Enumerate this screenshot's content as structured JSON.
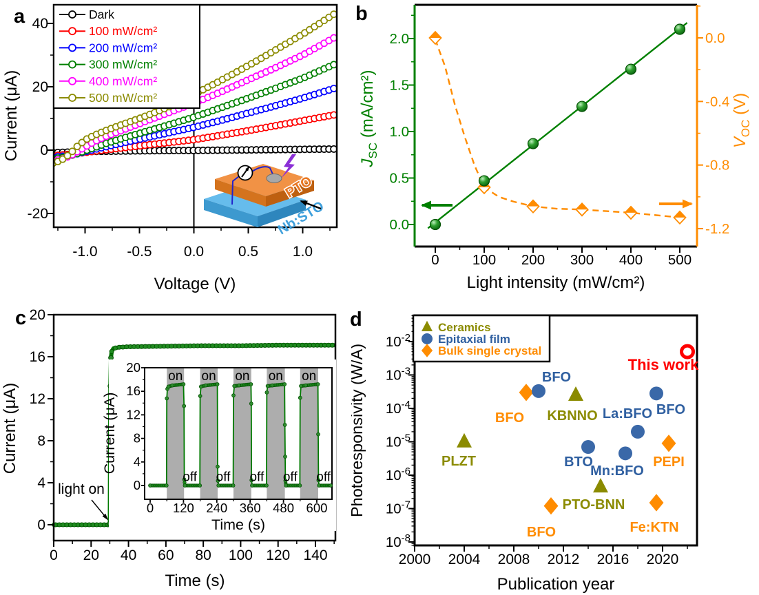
{
  "chart_data": [
    {
      "id": "a",
      "type": "line",
      "panel_label": "a",
      "xlabel": "Voltage (V)",
      "ylabel": "Current (μA)",
      "xlim": [
        -1.3,
        1.3
      ],
      "ylim": [
        -24.3,
        45.9
      ],
      "xticks": [
        -1.0,
        -0.5,
        0.0,
        0.5,
        1.0
      ],
      "xtick_labels": [
        "-1.0",
        "-0.5",
        "0.0",
        "0.5",
        "1.0"
      ],
      "yticks": [
        -20,
        0,
        20,
        40
      ],
      "ytick_labels": [
        "-20",
        "0",
        "20",
        "40"
      ],
      "x_minor_step": 0.25,
      "y_minor_step": 10,
      "legend_position": "top-left",
      "series": [
        {
          "name": "Dark",
          "color": "#000000",
          "points": [
            [
              -1.3,
              -0.8
            ],
            [
              -1.0,
              -0.45
            ],
            [
              -0.6,
              -0.25
            ],
            [
              -0.3,
              -0.15
            ],
            [
              0,
              -0.1
            ],
            [
              0.3,
              0
            ],
            [
              0.6,
              0.1
            ],
            [
              1.0,
              0.25
            ],
            [
              1.3,
              0.35
            ]
          ]
        },
        {
          "name": "100 mW/cm²",
          "color": "#FF0000",
          "points": [
            [
              -1.3,
              -1.8
            ],
            [
              -1.15,
              -1.35
            ],
            [
              -1.05,
              -0.95
            ],
            [
              -0.95,
              -0.5
            ],
            [
              -0.85,
              -0.05
            ],
            [
              -0.7,
              0.55
            ],
            [
              -0.55,
              1.15
            ],
            [
              -0.4,
              1.75
            ],
            [
              -0.2,
              2.5
            ],
            [
              0,
              3.3
            ],
            [
              0.25,
              4.7
            ],
            [
              0.5,
              6.15
            ],
            [
              0.75,
              7.7
            ],
            [
              1.0,
              9.3
            ],
            [
              1.3,
              11.2
            ]
          ]
        },
        {
          "name": "200 mW/cm²",
          "color": "#0000FF",
          "points": [
            [
              -1.3,
              -2.3
            ],
            [
              -1.18,
              -1.85
            ],
            [
              -1.08,
              -1.2
            ],
            [
              -0.98,
              -0.3
            ],
            [
              -0.9,
              0.35
            ],
            [
              -0.8,
              1.15
            ],
            [
              -0.6,
              2.7
            ],
            [
              -0.4,
              4.2
            ],
            [
              -0.2,
              5.7
            ],
            [
              0,
              7.2
            ],
            [
              0.25,
              9.4
            ],
            [
              0.5,
              11.7
            ],
            [
              0.75,
              14.0
            ],
            [
              1.0,
              16.4
            ],
            [
              1.3,
              19.6
            ]
          ]
        },
        {
          "name": "300 mW/cm²",
          "color": "#008000",
          "points": [
            [
              -1.3,
              -2.8
            ],
            [
              -1.2,
              -2.3
            ],
            [
              -1.1,
              -1.4
            ],
            [
              -1.0,
              -0.2
            ],
            [
              -0.9,
              1.0
            ],
            [
              -0.8,
              2.2
            ],
            [
              -0.6,
              4.3
            ],
            [
              -0.4,
              6.3
            ],
            [
              -0.2,
              8.3
            ],
            [
              0,
              10.4
            ],
            [
              0.25,
              13.4
            ],
            [
              0.5,
              16.4
            ],
            [
              0.75,
              19.5
            ],
            [
              1.0,
              22.7
            ],
            [
              1.3,
              27.2
            ]
          ]
        },
        {
          "name": "400 mW/cm²",
          "color": "#FF00FF",
          "points": [
            [
              -1.3,
              -3.5
            ],
            [
              -1.2,
              -2.7
            ],
            [
              -1.12,
              -1.5
            ],
            [
              -1.02,
              0.6
            ],
            [
              -0.92,
              2.6
            ],
            [
              -0.82,
              4.2
            ],
            [
              -0.65,
              6.4
            ],
            [
              -0.45,
              9.0
            ],
            [
              -0.25,
              11.6
            ],
            [
              0,
              14.8
            ],
            [
              0.25,
              18.4
            ],
            [
              0.5,
              22.2
            ],
            [
              0.75,
              26.0
            ],
            [
              1.0,
              30.0
            ],
            [
              1.3,
              35.7
            ]
          ]
        },
        {
          "name": "500 mW/cm²",
          "color": "#8B8B00",
          "points": [
            [
              -1.3,
              -4.2
            ],
            [
              -1.22,
              -3.2
            ],
            [
              -1.14,
              -1.2
            ],
            [
              -1.06,
              1.6
            ],
            [
              -0.98,
              3.6
            ],
            [
              -0.9,
              4.9
            ],
            [
              -0.8,
              6.3
            ],
            [
              -0.65,
              8.2
            ],
            [
              -0.5,
              10.0
            ],
            [
              -0.35,
              12.0
            ],
            [
              -0.2,
              14.1
            ],
            [
              0,
              17.6
            ],
            [
              0.2,
              21.1
            ],
            [
              0.4,
              24.8
            ],
            [
              0.6,
              28.6
            ],
            [
              0.8,
              32.6
            ],
            [
              1.0,
              36.6
            ],
            [
              1.3,
              43.2
            ]
          ]
        }
      ],
      "inset_device": {
        "top_label": "PTO",
        "bottom_label": "Nb:STO",
        "meter_label": "I",
        "top_color": "#F19245",
        "bottom_color": "#66BCEC",
        "label_top_color": "#E87722",
        "label_bottom_color": "#3FA0DC"
      }
    },
    {
      "id": "b",
      "type": "line+scatter",
      "panel_label": "b",
      "xlabel": "Light intensity (mW/cm²)",
      "xlim": [
        -42,
        537
      ],
      "xticks": [
        0,
        100,
        200,
        300,
        400,
        500
      ],
      "xtick_labels": [
        "0",
        "100",
        "200",
        "300",
        "400",
        "500"
      ],
      "x_minor_step": 50,
      "left_axis": {
        "label_italic": "J",
        "label_sub": "SC",
        "label_rest": " (mA/cm²)",
        "color": "#008000",
        "ticks": [
          0.0,
          0.5,
          1.0,
          1.5,
          2.0
        ],
        "tick_labels": [
          "0.0",
          "0.5",
          "1.0",
          "1.5",
          "2.0"
        ],
        "minor_ticks": [
          0.25,
          0.75,
          1.25,
          1.75,
          2.25
        ],
        "lim": [
          -0.24,
          2.36
        ]
      },
      "right_axis": {
        "label_italic": "V",
        "label_sub": "OC",
        "label_rest": " (V)",
        "color": "#FF8C00",
        "ticks": [
          0.0,
          -0.4,
          -0.8,
          -1.2
        ],
        "tick_labels": [
          "0.0",
          "-0.4",
          "-0.8",
          "-1.2"
        ],
        "minor_ticks": [
          0.2,
          -0.2,
          -0.6,
          -1.0
        ],
        "lim": [
          -1.31,
          0.21
        ]
      },
      "x": [
        0,
        100,
        200,
        300,
        400,
        500
      ],
      "jsc": [
        0.0,
        0.47,
        0.87,
        1.27,
        1.67,
        2.1
      ],
      "voc": [
        0.0,
        -0.94,
        -1.06,
        -1.08,
        -1.1,
        -1.13
      ],
      "jsc_fit_line": [
        [
          -15,
          -0.04
        ],
        [
          515,
          2.17
        ]
      ],
      "voc_curve": [
        [
          0,
          -0.01
        ],
        [
          20,
          -0.18
        ],
        [
          40,
          -0.42
        ],
        [
          60,
          -0.62
        ],
        [
          80,
          -0.8
        ],
        [
          100,
          -0.94
        ],
        [
          130,
          -1.0
        ],
        [
          160,
          -1.03
        ],
        [
          200,
          -1.06
        ],
        [
          250,
          -1.075
        ],
        [
          300,
          -1.08
        ],
        [
          350,
          -1.09
        ],
        [
          400,
          -1.1
        ],
        [
          450,
          -1.115
        ],
        [
          500,
          -1.13
        ]
      ]
    },
    {
      "id": "c",
      "type": "line",
      "panel_label": "c",
      "xlabel": "Time (s)",
      "ylabel": "Current (μA)",
      "xlim": [
        0,
        150.5
      ],
      "ylim": [
        -1.5,
        20
      ],
      "xticks": [
        0,
        20,
        40,
        60,
        80,
        100,
        120,
        140
      ],
      "xtick_labels": [
        "0",
        "20",
        "40",
        "60",
        "80",
        "100",
        "120",
        "140"
      ],
      "yticks": [
        0,
        4,
        8,
        12,
        16,
        20
      ],
      "ytick_labels": [
        "0",
        "4",
        "8",
        "12",
        "16",
        "20"
      ],
      "x_minor_step": 10,
      "y_minor_step": 2,
      "annotation": "light on",
      "series_color": "#007A00",
      "main_points": [
        [
          0,
          0
        ],
        [
          29.5,
          0
        ],
        [
          30,
          0.1
        ],
        [
          30.3,
          13.2
        ],
        [
          30.6,
          15.9
        ],
        [
          31,
          16.5
        ],
        [
          32,
          16.8
        ],
        [
          35,
          16.9
        ],
        [
          40,
          16.95
        ],
        [
          60,
          17.0
        ],
        [
          80,
          17.05
        ],
        [
          100,
          17.05
        ],
        [
          120,
          17.1
        ],
        [
          150,
          17.1
        ]
      ],
      "inset": {
        "xlabel": "Time (s)",
        "ylabel": "Current (μA)",
        "xlim": [
          -20,
          655
        ],
        "ylim": [
          -2.3,
          20
        ],
        "xticks": [
          0,
          120,
          240,
          360,
          480,
          600
        ],
        "xtick_labels": [
          "0",
          "120",
          "240",
          "360",
          "480",
          "600"
        ],
        "yticks": [
          0,
          4,
          8,
          12,
          16,
          20
        ],
        "ytick_labels": [
          "0",
          "4",
          "8",
          "12",
          "16",
          "20"
        ],
        "on_label": "on",
        "off_label": "off",
        "band_color": "#ADADAD",
        "bands": [
          [
            60,
            122
          ],
          [
            180,
            243
          ],
          [
            300,
            364
          ],
          [
            420,
            485
          ],
          [
            540,
            605
          ]
        ],
        "points": [
          [
            0,
            0
          ],
          [
            59,
            0
          ],
          [
            60,
            14.8
          ],
          [
            62,
            16.4
          ],
          [
            66,
            16.8
          ],
          [
            80,
            17.0
          ],
          [
            120,
            17.2
          ],
          [
            122,
            13.5
          ],
          [
            123,
            1.0
          ],
          [
            125,
            0
          ],
          [
            179,
            0
          ],
          [
            180,
            15.2
          ],
          [
            183,
            16.8
          ],
          [
            200,
            17.0
          ],
          [
            242,
            17.2
          ],
          [
            243,
            3.2
          ],
          [
            244,
            0.8
          ],
          [
            246,
            0
          ],
          [
            299,
            0
          ],
          [
            300,
            15.3
          ],
          [
            303,
            16.9
          ],
          [
            320,
            17.0
          ],
          [
            363,
            17.2
          ],
          [
            364,
            13.9
          ],
          [
            365,
            0.9
          ],
          [
            367,
            0
          ],
          [
            419,
            0
          ],
          [
            420,
            15.8
          ],
          [
            423,
            16.9
          ],
          [
            440,
            17.0
          ],
          [
            484,
            17.2
          ],
          [
            485,
            10.3
          ],
          [
            486,
            4.9
          ],
          [
            487,
            0.8
          ],
          [
            489,
            0
          ],
          [
            539,
            0
          ],
          [
            540,
            14.9
          ],
          [
            543,
            16.9
          ],
          [
            560,
            17.0
          ],
          [
            604,
            17.2
          ],
          [
            605,
            8.7
          ],
          [
            606,
            0.9
          ],
          [
            608,
            0
          ],
          [
            650,
            0
          ]
        ],
        "on_x": [
          91,
          211,
          332,
          452,
          572
        ],
        "off_x": [
          143,
          263,
          384,
          504,
          624
        ]
      }
    },
    {
      "id": "d",
      "type": "scatter",
      "panel_label": "d",
      "xlabel": "Publication year",
      "ylabel": "Photoresponsivity (W/A)",
      "xlim": [
        2000,
        2022.8
      ],
      "xticks": [
        2000,
        2004,
        2008,
        2012,
        2016,
        2020
      ],
      "xtick_labels": [
        "2000",
        "2004",
        "2008",
        "2012",
        "2016",
        "2020"
      ],
      "x_minor_step": 2,
      "ylim_exp": [
        -8.1,
        -1.22
      ],
      "ytick_exps": [
        -2,
        -3,
        -4,
        -5,
        -6,
        -7,
        -8
      ],
      "legend": [
        {
          "label": "Ceramics",
          "type": "triangle",
          "color": "#8B8B00"
        },
        {
          "label": "Epitaxial film",
          "type": "circle",
          "color": "#3A68A8",
          "text_color": "#2F5FA0"
        },
        {
          "label": "Bulk single crystal",
          "type": "diamond",
          "color": "#FF8C00"
        }
      ],
      "points": [
        {
          "label": "PLZT",
          "year": 2004,
          "value": 1e-05,
          "type": "triangle",
          "color": "#8B8B00",
          "label_color": "#8B8B00",
          "lx": 156,
          "ly": 244
        },
        {
          "label": "BFO",
          "year": 2009,
          "value": 0.0003,
          "type": "diamond",
          "color": "#FF8C00",
          "label_color": "#FF8C00",
          "lx": 230,
          "ly": 181
        },
        {
          "label": "BFO",
          "year": 2010,
          "value": 0.00033,
          "type": "circle",
          "color": "#3A68A8",
          "label_color": "#2F5FA0",
          "lx": 298,
          "ly": 122
        },
        {
          "label": "BFO",
          "year": 2011,
          "value": 1.2e-07,
          "type": "diamond",
          "color": "#FF8C00",
          "label_color": "#FF8C00",
          "lx": 276,
          "ly": 347
        },
        {
          "label": "KBNNO",
          "year": 2013,
          "value": 0.00025,
          "type": "triangle",
          "color": "#8B8B00",
          "label_color": "#8B8B00",
          "lx": 321,
          "ly": 178
        },
        {
          "label": "BTO",
          "year": 2014,
          "value": 7e-06,
          "type": "circle",
          "color": "#3A68A8",
          "label_color": "#2F5FA0",
          "lx": 330,
          "ly": 245
        },
        {
          "label": "PTO-BNN",
          "year": 2015,
          "value": 4.5e-07,
          "type": "triangle",
          "color": "#8B8B00",
          "label_color": "#8B8B00",
          "lx": 352,
          "ly": 307
        },
        {
          "label": "Mn:BFO",
          "year": 2017,
          "value": 4.5e-06,
          "type": "circle",
          "color": "#3A68A8",
          "label_color": "#2F5FA0",
          "lx": 386,
          "ly": 258
        },
        {
          "label": "La:BFO",
          "year": 2018,
          "value": 2e-05,
          "type": "circle",
          "color": "#3A68A8",
          "label_color": "#2F5FA0",
          "lx": 401,
          "ly": 175
        },
        {
          "label": "BFO",
          "year": 2019.5,
          "value": 0.00028,
          "type": "circle",
          "color": "#3A68A8",
          "label_color": "#2F5FA0",
          "lx": 464,
          "ly": 169
        },
        {
          "label": "Fe:KTN",
          "year": 2019.5,
          "value": 1.5e-07,
          "type": "diamond",
          "color": "#FF8C00",
          "label_color": "#FF8C00",
          "lx": 440,
          "ly": 340
        },
        {
          "label": "PEPI",
          "year": 2020.5,
          "value": 9e-06,
          "type": "diamond",
          "color": "#FF8C00",
          "label_color": "#FF8C00",
          "lx": 461,
          "ly": 245
        },
        {
          "label": "This work",
          "year": 2022,
          "value": 0.005,
          "type": "open-circle",
          "color": "#FF0000",
          "label_color": "#FF0000",
          "lx": 453,
          "ly": 105
        }
      ]
    }
  ]
}
